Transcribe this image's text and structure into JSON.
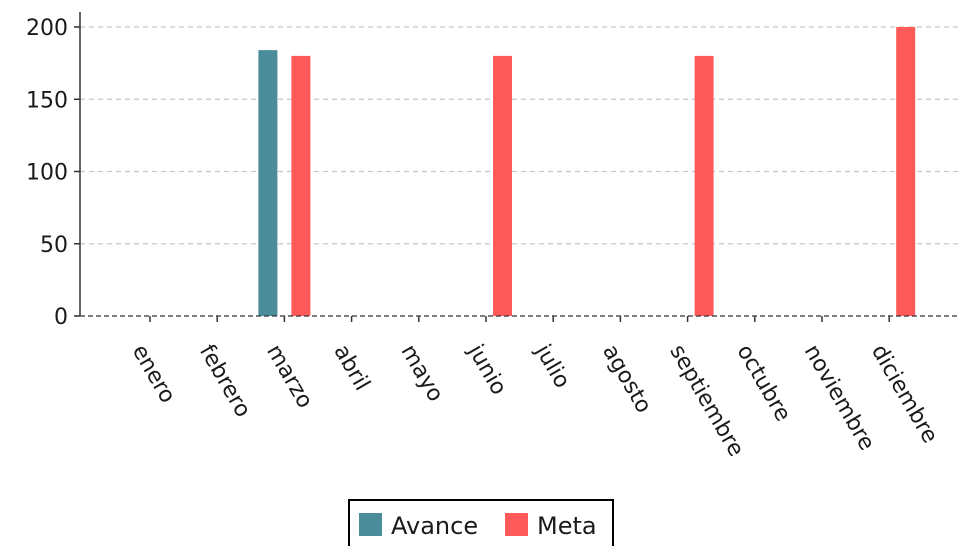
{
  "chart_data": {
    "type": "bar",
    "categories": [
      "enero",
      "febrero",
      "marzo",
      "abril",
      "mayo",
      "junio",
      "julio",
      "agosto",
      "septiembre",
      "octubre",
      "noviembre",
      "diciembre"
    ],
    "series": [
      {
        "name": "Avance",
        "values": [
          0,
          0,
          184,
          0,
          0,
          0,
          0,
          0,
          0,
          0,
          0,
          0
        ],
        "color": "#4a8c99"
      },
      {
        "name": "Meta",
        "values": [
          0,
          0,
          180,
          0,
          0,
          180,
          0,
          0,
          180,
          0,
          0,
          200
        ],
        "color": "#ff5a5a"
      }
    ],
    "yticks": [
      0,
      50,
      100,
      150,
      200
    ],
    "ylim": [
      0,
      210
    ],
    "grid": "horizontal-dashed",
    "legend_position": "bottom-center"
  }
}
